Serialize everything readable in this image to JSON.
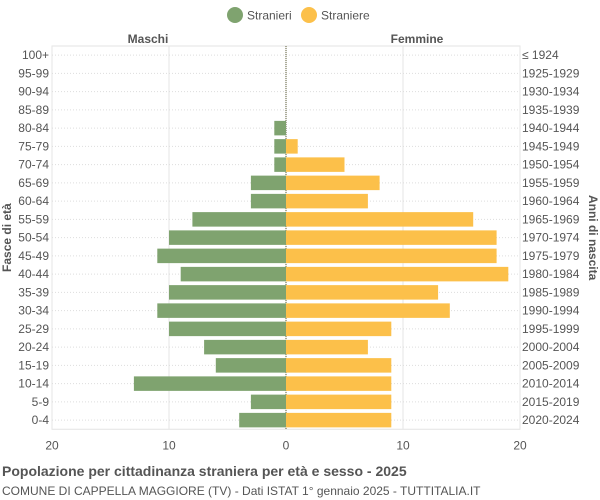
{
  "chart_data": {
    "type": "bar",
    "title": "Popolazione per cittadinanza straniera per età e sesso - 2025",
    "subtitle": "COMUNE DI CAPPELLA MAGGIORE (TV) - Dati ISTAT 1° gennaio 2025 - TUTTITALIA.IT",
    "left_header": "Maschi",
    "right_header": "Femmine",
    "ylabel_left": "Fasce di età",
    "ylabel_right": "Anni di nascita",
    "legend": {
      "position": "top-center",
      "items": [
        {
          "name": "Stranieri",
          "color": "#7fa36f"
        },
        {
          "name": "Straniere",
          "color": "#fcc04a"
        }
      ]
    },
    "xlim": [
      -20,
      20
    ],
    "xticks": [
      "20",
      "10",
      "0",
      "10",
      "20"
    ],
    "grid": true,
    "categories": [
      "100+",
      "95-99",
      "90-94",
      "85-89",
      "80-84",
      "75-79",
      "70-74",
      "65-69",
      "60-64",
      "55-59",
      "50-54",
      "45-49",
      "40-44",
      "35-39",
      "30-34",
      "25-29",
      "20-24",
      "15-19",
      "10-14",
      "5-9",
      "0-4"
    ],
    "birth_years": [
      "≤ 1924",
      "1925-1929",
      "1930-1934",
      "1935-1939",
      "1940-1944",
      "1945-1949",
      "1950-1954",
      "1955-1959",
      "1960-1964",
      "1965-1969",
      "1970-1974",
      "1975-1979",
      "1980-1984",
      "1985-1989",
      "1990-1994",
      "1995-1999",
      "2000-2004",
      "2005-2009",
      "2010-2014",
      "2015-2019",
      "2020-2024"
    ],
    "series": [
      {
        "name": "Stranieri",
        "color": "#7fa36f",
        "values": [
          0,
          0,
          0,
          0,
          1,
          1,
          1,
          3,
          3,
          8,
          10,
          11,
          9,
          10,
          11,
          10,
          7,
          6,
          13,
          3,
          4
        ]
      },
      {
        "name": "Straniere",
        "color": "#fcc04a",
        "values": [
          0,
          0,
          0,
          0,
          0,
          1,
          5,
          8,
          7,
          16,
          18,
          18,
          19,
          13,
          14,
          9,
          7,
          9,
          9,
          9,
          9
        ]
      }
    ]
  }
}
